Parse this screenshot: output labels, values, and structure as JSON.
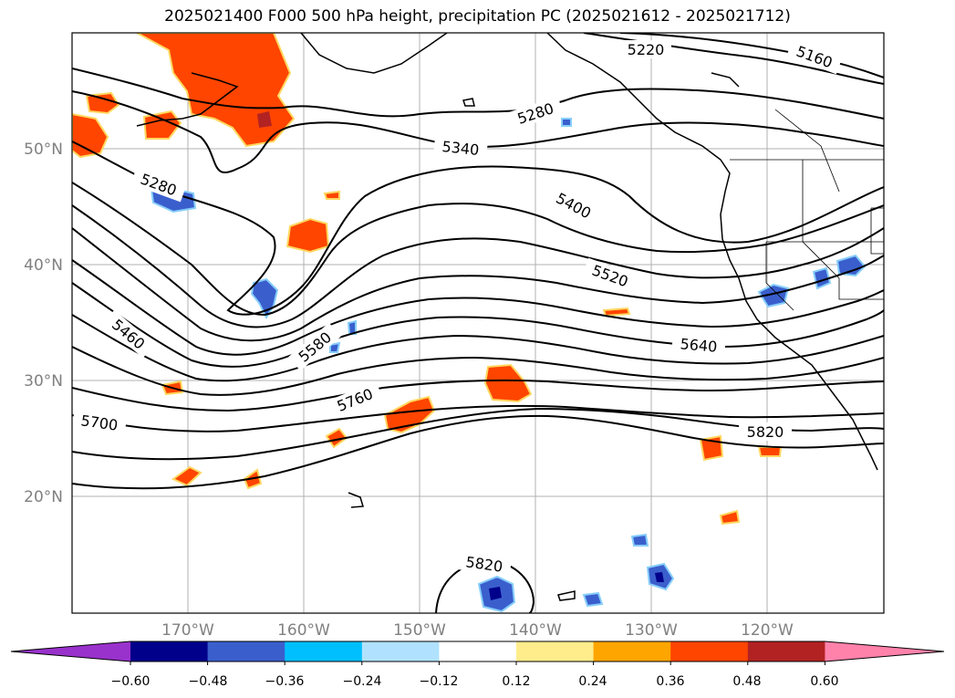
{
  "title": "2025021400 F000 500 hPa height, precipitation PC (2025021612 - 2025021712)",
  "latitudes": [
    "50°N",
    "40°N",
    "30°N",
    "20°N"
  ],
  "longitudes": [
    "170°W",
    "160°W",
    "150°W",
    "140°W",
    "130°W",
    "120°W"
  ],
  "contour_labels": [
    {
      "text": "5220"
    },
    {
      "text": "5160"
    },
    {
      "text": "5280"
    },
    {
      "text": "5340"
    },
    {
      "text": "5280"
    },
    {
      "text": "5400"
    },
    {
      "text": "5520"
    },
    {
      "text": "5460"
    },
    {
      "text": "5580"
    },
    {
      "text": "5640"
    },
    {
      "text": "5760"
    },
    {
      "text": "5700"
    },
    {
      "text": "5820"
    },
    {
      "text": "5820"
    }
  ],
  "colorbar": {
    "ticks": [
      "−0.60",
      "−0.48",
      "−0.36",
      "−0.24",
      "−0.12",
      "0.12",
      "0.24",
      "0.36",
      "0.48",
      "0.60"
    ],
    "colors": [
      "#9932cc",
      "#00008b",
      "#3a5fcd",
      "#00bfff",
      "#b0e2ff",
      "#ffffff",
      "#ffec8b",
      "#ffa500",
      "#ff4500",
      "#b22222",
      "#ff82ab"
    ]
  }
}
